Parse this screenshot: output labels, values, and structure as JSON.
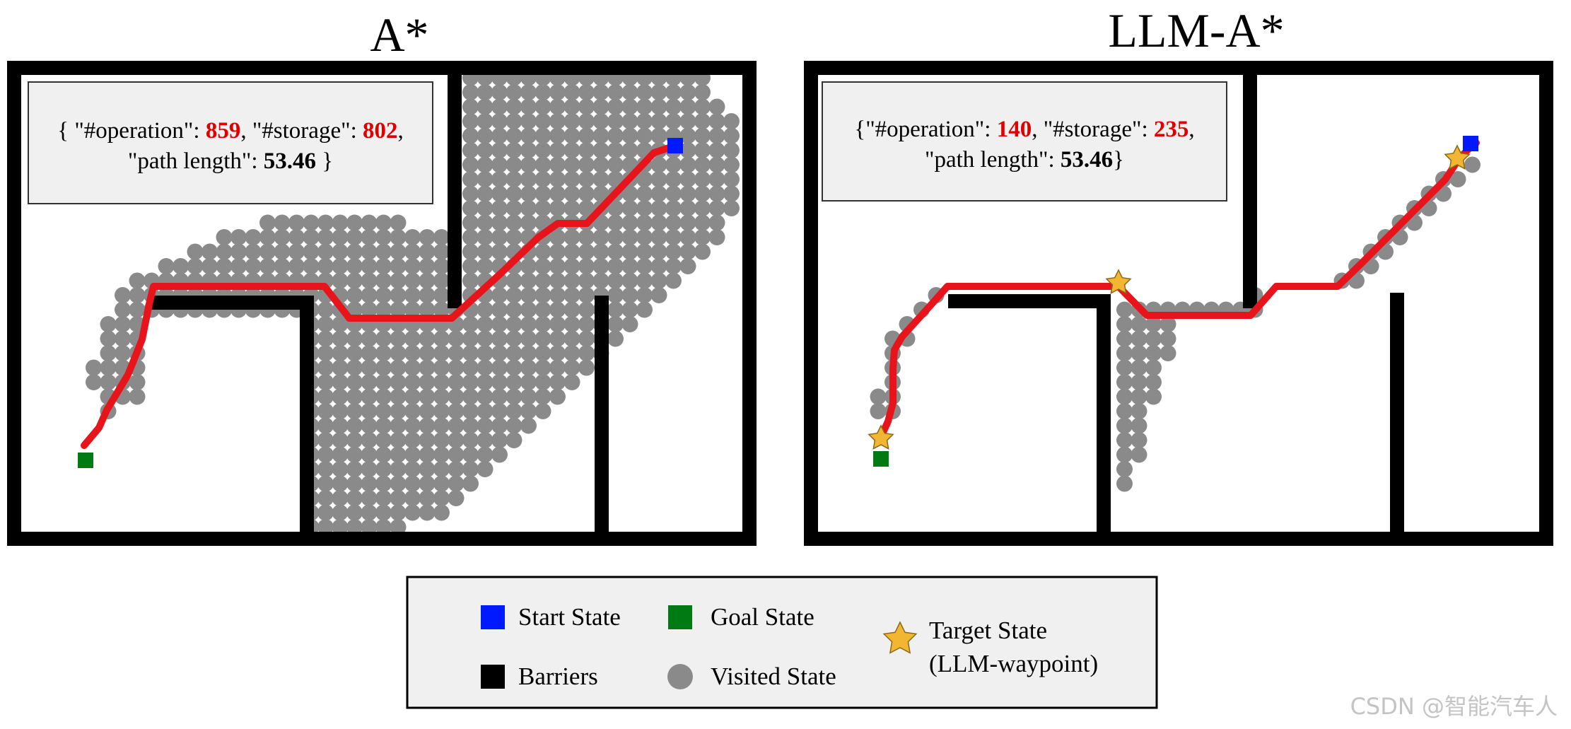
{
  "panels": [
    {
      "title": "A*",
      "stats": {
        "line1_open": "{ \"#operation\": ",
        "operation": "859",
        "line1_mid": ", \"#storage\": ",
        "storage": "802",
        "line1_close": ",",
        "line2_open": "\"path length\": ",
        "path_length": "53.46",
        "line2_close": " }"
      }
    },
    {
      "title": "LLM-A*",
      "stats": {
        "line1_open": "{\"#operation\": ",
        "operation": "140",
        "line1_mid": ", \"#storage\": ",
        "storage": "235",
        "line1_close": ",",
        "line2_open": "\"path length\": ",
        "path_length": "53.46",
        "line2_close": "}"
      }
    }
  ],
  "legend": {
    "start": "Start State",
    "goal": "Goal State",
    "target_line1": "Target State",
    "target_line2": "(LLM-waypoint)",
    "barriers": "Barriers",
    "visited": "Visited State"
  },
  "colors": {
    "start": "#0019ff",
    "goal": "#007a12",
    "barrier": "#000000",
    "visited": "#8a8a8a",
    "path": "#e8141c",
    "waypoint": "#f2b632",
    "stat_box": "#f0f0f0",
    "highlight_number": "#e00000"
  },
  "watermark": "CSDN @智能汽车人"
}
